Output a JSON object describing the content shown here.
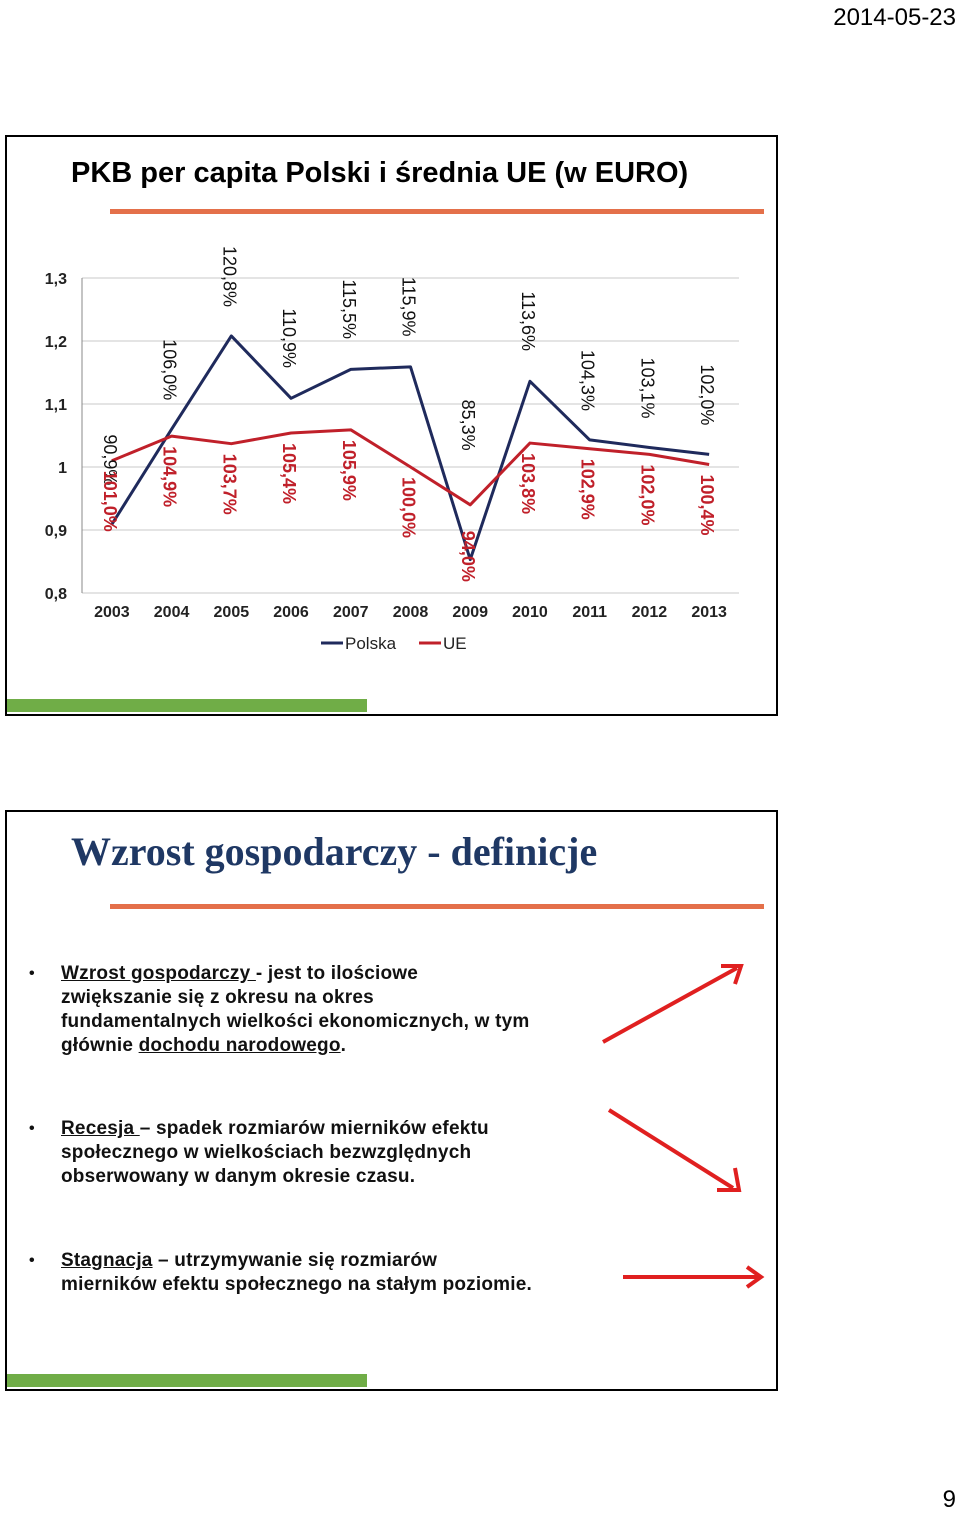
{
  "header": {
    "date": "2014-05-23"
  },
  "footer": {
    "page_number": "9"
  },
  "slide1": {
    "title": "PKB per capita Polski i średnia UE (w EURO)",
    "chart_data": {
      "type": "line",
      "x": [
        "2003",
        "2004",
        "2005",
        "2006",
        "2007",
        "2008",
        "2009",
        "2010",
        "2011",
        "2012",
        "2013"
      ],
      "ylim": [
        0.8,
        1.3
      ],
      "y_ticks": [
        "0,8",
        "0,9",
        "1",
        "1,1",
        "1,2",
        "1,3"
      ],
      "grid": true,
      "legend_position": "bottom",
      "series": [
        {
          "name": "Polska",
          "color": "#1f2a5c",
          "values": [
            0.909,
            1.06,
            1.208,
            1.109,
            1.155,
            1.159,
            0.853,
            1.136,
            1.043,
            1.031,
            1.02
          ],
          "labels": [
            "90,9%",
            "106,0%",
            "120,8%",
            "110,9%",
            "115,5%",
            "115,9%",
            "85,3%",
            "113,6%",
            "104,3%",
            "103,1%",
            "102,0%"
          ]
        },
        {
          "name": "UE",
          "color": "#c0202a",
          "values": [
            1.01,
            1.049,
            1.037,
            1.054,
            1.059,
            1.0,
            0.94,
            1.038,
            1.029,
            1.02,
            1.004
          ],
          "labels": [
            "101,0%",
            "104,9%",
            "103,7%",
            "105,4%",
            "105,9%",
            "100,0%",
            "94,0%",
            "103,8%",
            "102,9%",
            "102,0%",
            "100,4%"
          ]
        }
      ]
    }
  },
  "slide2": {
    "title": "Wzrost gospodarczy - definicje",
    "bullets": [
      {
        "term": "Wzrost gospodarczy ",
        "line1_rest": "- jest to ilościowe",
        "line2": "zwiększanie się z okresu na okres",
        "line3": "fundamentalnych wielkości ekonomicznych, w tym",
        "line4_pre": "głównie ",
        "line4_underlined": "dochodu narodowego",
        "line4_post": ".",
        "arrow": "up-right"
      },
      {
        "term": "Recesja ",
        "line1_rest": "– spadek rozmiarów mierników efektu",
        "line2": "społecznego w wielkościach bezwzględnych",
        "line3": "obserwowany w danym okresie czasu.",
        "arrow": "down-right"
      },
      {
        "term": "Stagnacja",
        "line1_rest": " – utrzymywanie się rozmiarów",
        "line2": "mierników efektu społecznego na stałym poziomie.",
        "arrow": "right"
      }
    ],
    "arrow_color": "#e02020"
  }
}
